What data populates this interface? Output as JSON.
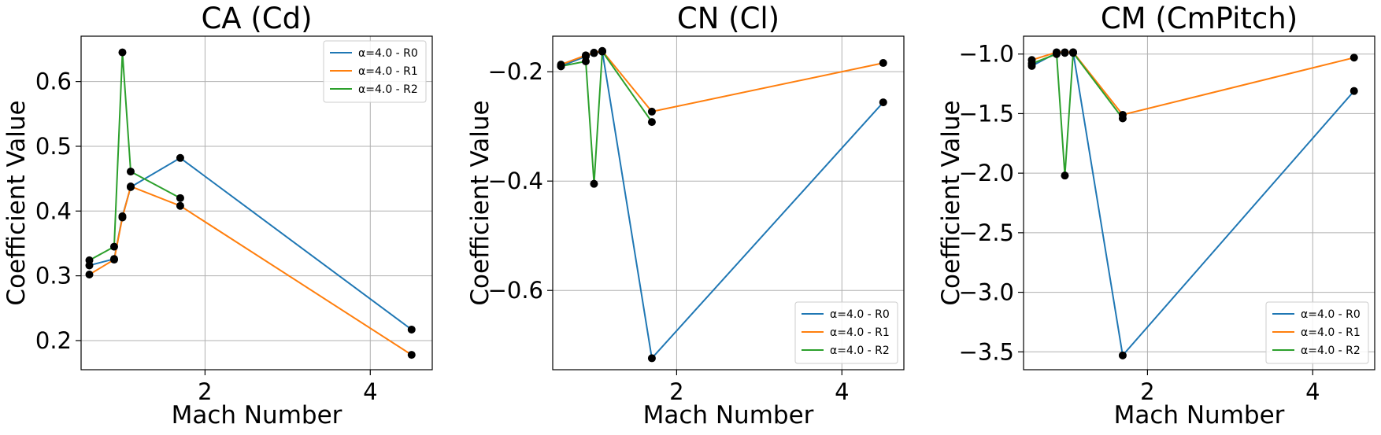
{
  "chart_data": [
    {
      "type": "line",
      "title": "CA (Cd)",
      "xlabel": "Mach Number",
      "ylabel": "Coefficient Value",
      "xlim": [
        0.5,
        4.75
      ],
      "ylim": [
        0.155,
        0.67
      ],
      "xticks": [
        2,
        4
      ],
      "yticks": [
        0.2,
        0.3,
        0.4,
        0.5,
        0.6
      ],
      "grid": true,
      "legend_position": "top-right",
      "series": [
        {
          "name": "α=4.0 - R0",
          "color": "#1f77b4",
          "x": [
            0.6,
            0.9,
            1.0,
            1.1,
            1.7,
            4.5
          ],
          "y": [
            0.316,
            0.326,
            0.392,
            0.437,
            0.482,
            0.217
          ]
        },
        {
          "name": "α=4.0 - R1",
          "color": "#ff7f0e",
          "x": [
            0.6,
            0.9,
            1.0,
            1.1,
            1.7,
            4.5
          ],
          "y": [
            0.302,
            0.325,
            0.39,
            0.438,
            0.408,
            0.178
          ]
        },
        {
          "name": "α=4.0 - R2",
          "color": "#2ca02c",
          "x": [
            0.6,
            0.9,
            1.0,
            1.1,
            1.7
          ],
          "y": [
            0.324,
            0.345,
            0.645,
            0.461,
            0.42
          ]
        }
      ]
    },
    {
      "type": "line",
      "title": "CN (Cl)",
      "xlabel": "Mach Number",
      "ylabel": "Coefficient Value",
      "xlim": [
        0.5,
        4.75
      ],
      "ylim": [
        -0.745,
        -0.135
      ],
      "xticks": [
        2,
        4
      ],
      "yticks": [
        -0.2,
        -0.4,
        -0.6
      ],
      "grid": true,
      "legend_position": "bottom-right",
      "series": [
        {
          "name": "α=4.0 - R0",
          "color": "#1f77b4",
          "x": [
            0.6,
            0.9,
            1.0,
            1.1,
            1.7,
            4.5
          ],
          "y": [
            -0.19,
            -0.172,
            -0.166,
            -0.163,
            -0.724,
            -0.256
          ]
        },
        {
          "name": "α=4.0 - R1",
          "color": "#ff7f0e",
          "x": [
            0.6,
            0.9,
            1.0,
            1.1,
            1.7,
            4.5
          ],
          "y": [
            -0.187,
            -0.17,
            -0.165,
            -0.162,
            -0.273,
            -0.184
          ]
        },
        {
          "name": "α=4.0 - R2",
          "color": "#2ca02c",
          "x": [
            0.6,
            0.9,
            1.0,
            1.1,
            1.7
          ],
          "y": [
            -0.19,
            -0.181,
            -0.405,
            -0.163,
            -0.292
          ]
        }
      ]
    },
    {
      "type": "line",
      "title": "CM (CmPitch)",
      "xlabel": "Mach Number",
      "ylabel": "Coefficient Value",
      "xlim": [
        0.5,
        4.75
      ],
      "ylim": [
        -3.65,
        -0.85
      ],
      "xticks": [
        2,
        4
      ],
      "yticks": [
        -1.0,
        -1.5,
        -2.0,
        -2.5,
        -3.0,
        -3.5
      ],
      "grid": true,
      "legend_position": "bottom-right",
      "series": [
        {
          "name": "α=4.0 - R0",
          "color": "#1f77b4",
          "x": [
            0.6,
            0.9,
            1.0,
            1.1,
            1.7,
            4.5
          ],
          "y": [
            -1.1,
            -0.99,
            -0.99,
            -0.985,
            -3.53,
            -1.31
          ]
        },
        {
          "name": "α=4.0 - R1",
          "color": "#ff7f0e",
          "x": [
            0.6,
            0.9,
            1.0,
            1.1,
            1.7,
            4.5
          ],
          "y": [
            -1.05,
            -0.985,
            -0.985,
            -0.985,
            -1.51,
            -1.03
          ]
        },
        {
          "name": "α=4.0 - R2",
          "color": "#2ca02c",
          "x": [
            0.6,
            0.9,
            1.0,
            1.1,
            1.7
          ],
          "y": [
            -1.08,
            -1.0,
            -2.02,
            -0.99,
            -1.54
          ]
        }
      ]
    }
  ]
}
